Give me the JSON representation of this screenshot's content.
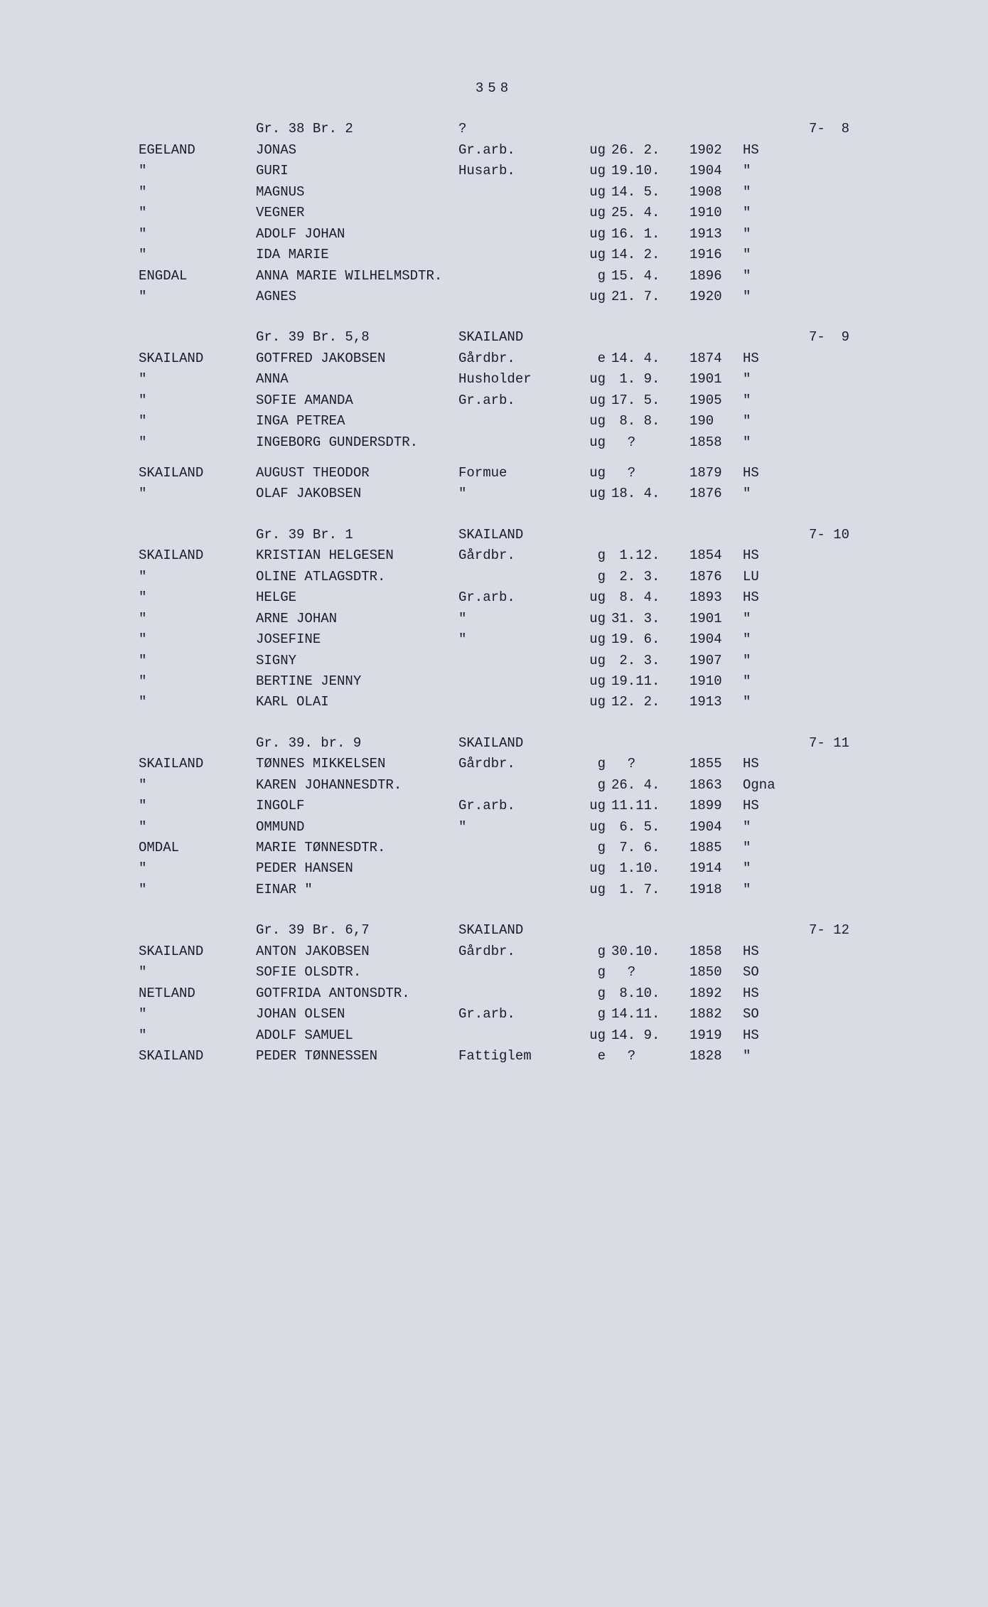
{
  "page_number": "358",
  "styling": {
    "font_family": "Courier New",
    "font_size_pt": 14,
    "text_color": "#1a1a2e",
    "background_color": "#d8dce4",
    "line_height": 1.55
  },
  "sections": [
    {
      "header": {
        "gr": "Gr. 38 Br. 2",
        "q": "?",
        "loc": "",
        "ref": "7-  8"
      },
      "rows": [
        {
          "surname": "EGELAND",
          "name": "JONAS",
          "occ": "Gr.arb.",
          "status": "ug",
          "date": "26. 2.",
          "year": "1902",
          "place": "HS"
        },
        {
          "surname": "\"",
          "name": "GURI",
          "occ": "Husarb.",
          "status": "ug",
          "date": "19.10.",
          "year": "1904",
          "place": "\""
        },
        {
          "surname": "\"",
          "name": "MAGNUS",
          "occ": "",
          "status": "ug",
          "date": "14. 5.",
          "year": "1908",
          "place": "\""
        },
        {
          "surname": "\"",
          "name": "VEGNER",
          "occ": "",
          "status": "ug",
          "date": "25. 4.",
          "year": "1910",
          "place": "\""
        },
        {
          "surname": "\"",
          "name": "ADOLF JOHAN",
          "occ": "",
          "status": "ug",
          "date": "16. 1.",
          "year": "1913",
          "place": "\""
        },
        {
          "surname": "\"",
          "name": "IDA MARIE",
          "occ": "",
          "status": "ug",
          "date": "14. 2.",
          "year": "1916",
          "place": "\""
        },
        {
          "surname": "ENGDAL",
          "name": "ANNA MARIE WILHELMSDTR.",
          "occ": "",
          "status": "g",
          "date": "15. 4.",
          "year": "1896",
          "place": "\""
        },
        {
          "surname": "\"",
          "name": "AGNES",
          "occ": "",
          "status": "ug",
          "date": "21. 7.",
          "year": "1920",
          "place": "\""
        }
      ]
    },
    {
      "header": {
        "gr": "Gr. 39 Br. 5,8",
        "q": "",
        "loc": "SKAILAND",
        "ref": "7-  9"
      },
      "rows": [
        {
          "surname": "SKAILAND",
          "name": "GOTFRED JAKOBSEN",
          "occ": "Gårdbr.",
          "status": "e",
          "date": "14. 4.",
          "year": "1874",
          "place": "HS"
        },
        {
          "surname": "\"",
          "name": "ANNA",
          "occ": "Husholder",
          "status": "ug",
          "date": " 1. 9.",
          "year": "1901",
          "place": "\""
        },
        {
          "surname": "\"",
          "name": "SOFIE AMANDA",
          "occ": "Gr.arb.",
          "status": "ug",
          "date": "17. 5.",
          "year": "1905",
          "place": "\""
        },
        {
          "surname": "\"",
          "name": "INGA PETREA",
          "occ": "",
          "status": "ug",
          "date": " 8. 8.",
          "year": "190",
          "place": "\""
        },
        {
          "surname": "\"",
          "name": "INGEBORG GUNDERSDTR.",
          "occ": "",
          "status": "ug",
          "date": "  ?",
          "year": "1858",
          "place": "\""
        }
      ],
      "rows2": [
        {
          "surname": "SKAILAND",
          "name": "AUGUST THEODOR",
          "occ": "Formue",
          "status": "ug",
          "date": "  ?",
          "year": "1879",
          "place": "HS"
        },
        {
          "surname": "\"",
          "name": "OLAF JAKOBSEN",
          "occ": "  \"",
          "status": "ug",
          "date": "18. 4.",
          "year": "1876",
          "place": "\""
        }
      ]
    },
    {
      "header": {
        "gr": "Gr. 39 Br. 1",
        "q": "",
        "loc": "SKAILAND",
        "ref": "7- 10"
      },
      "rows": [
        {
          "surname": "SKAILAND",
          "name": "KRISTIAN HELGESEN",
          "occ": "Gårdbr.",
          "status": "g",
          "date": " 1.12.",
          "year": "1854",
          "place": "HS"
        },
        {
          "surname": "\"",
          "name": "OLINE ATLAGSDTR.",
          "occ": "",
          "status": "g",
          "date": " 2. 3.",
          "year": "1876",
          "place": "LU"
        },
        {
          "surname": "\"",
          "name": "HELGE",
          "occ": "Gr.arb.",
          "status": "ug",
          "date": " 8. 4.",
          "year": "1893",
          "place": "HS"
        },
        {
          "surname": "\"",
          "name": "ARNE JOHAN",
          "occ": "  \"",
          "status": "ug",
          "date": "31. 3.",
          "year": "1901",
          "place": "\""
        },
        {
          "surname": "\"",
          "name": "JOSEFINE",
          "occ": "  \"",
          "status": "ug",
          "date": "19. 6.",
          "year": "1904",
          "place": "\""
        },
        {
          "surname": "\"",
          "name": "SIGNY",
          "occ": "",
          "status": "ug",
          "date": " 2. 3.",
          "year": "1907",
          "place": "\""
        },
        {
          "surname": "\"",
          "name": "BERTINE JENNY",
          "occ": "",
          "status": "ug",
          "date": "19.11.",
          "year": "1910",
          "place": "\""
        },
        {
          "surname": "\"",
          "name": "KARL OLAI",
          "occ": "",
          "status": "ug",
          "date": "12. 2.",
          "year": "1913",
          "place": "\""
        }
      ]
    },
    {
      "header": {
        "gr": "Gr. 39. br. 9",
        "q": "",
        "loc": "SKAILAND",
        "ref": "7- 11"
      },
      "rows": [
        {
          "surname": "SKAILAND",
          "name": "TØNNES MIKKELSEN",
          "occ": "Gårdbr.",
          "status": "g",
          "date": "  ?",
          "year": "1855",
          "place": "HS"
        },
        {
          "surname": "\"",
          "name": "KAREN JOHANNESDTR.",
          "occ": "",
          "status": "g",
          "date": "26. 4.",
          "year": "1863",
          "place": "Ogna"
        },
        {
          "surname": "\"",
          "name": "INGOLF",
          "occ": "Gr.arb.",
          "status": "ug",
          "date": "11.11.",
          "year": "1899",
          "place": "HS"
        },
        {
          "surname": "\"",
          "name": "OMMUND",
          "occ": "  \"",
          "status": "ug",
          "date": " 6. 5.",
          "year": "1904",
          "place": "\""
        },
        {
          "surname": "OMDAL",
          "name": "MARIE TØNNESDTR.",
          "occ": "",
          "status": "g",
          "date": " 7. 6.",
          "year": "1885",
          "place": "\""
        },
        {
          "surname": "\"",
          "name": "PEDER HANSEN",
          "occ": "",
          "status": "ug",
          "date": " 1.10.",
          "year": "1914",
          "place": "\""
        },
        {
          "surname": "\"",
          "name": "EINAR   \"",
          "occ": "",
          "status": "ug",
          "date": " 1. 7.",
          "year": "1918",
          "place": "\""
        }
      ]
    },
    {
      "header": {
        "gr": "Gr. 39 Br. 6,7",
        "q": "",
        "loc": "SKAILAND",
        "ref": "7- 12"
      },
      "rows": [
        {
          "surname": "SKAILAND",
          "name": "ANTON JAKOBSEN",
          "occ": "Gårdbr.",
          "status": "g",
          "date": "30.10.",
          "year": "1858",
          "place": "HS"
        },
        {
          "surname": "\"",
          "name": "SOFIE OLSDTR.",
          "occ": "",
          "status": "g",
          "date": "  ?",
          "year": "1850",
          "place": "SO"
        },
        {
          "surname": "NETLAND",
          "name": "GOTFRIDA ANTONSDTR.",
          "occ": "",
          "status": "g",
          "date": " 8.10.",
          "year": "1892",
          "place": "HS"
        },
        {
          "surname": "\"",
          "name": "JOHAN OLSEN",
          "occ": "Gr.arb.",
          "status": "g",
          "date": "14.11.",
          "year": "1882",
          "place": "SO"
        },
        {
          "surname": "\"",
          "name": "ADOLF SAMUEL",
          "occ": "",
          "status": "ug",
          "date": "14. 9.",
          "year": "1919",
          "place": "HS"
        },
        {
          "surname": "SKAILAND",
          "name": "PEDER TØNNESSEN",
          "occ": "Fattiglem",
          "status": "e",
          "date": "  ?",
          "year": "1828",
          "place": "\""
        }
      ]
    }
  ]
}
